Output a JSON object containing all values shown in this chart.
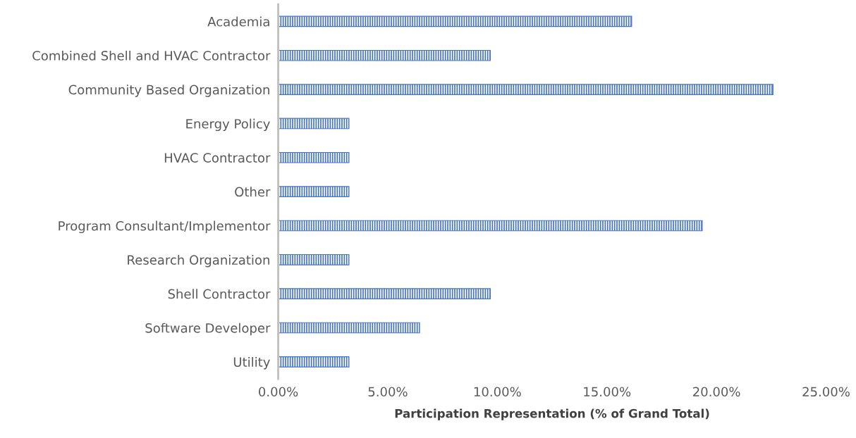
{
  "chart_data": {
    "type": "bar",
    "orientation": "horizontal",
    "xlabel": "Participation Representation (% of Grand Total)",
    "categories": [
      "Academia",
      "Combined Shell and HVAC Contractor",
      "Community Based Organization",
      "Energy Policy",
      "HVAC Contractor",
      "Other",
      "Program Consultant/Implementor",
      "Research Organization",
      "Shell Contractor",
      "Software Developer",
      "Utility"
    ],
    "values": [
      16.13,
      9.68,
      22.58,
      3.23,
      3.23,
      3.23,
      19.35,
      3.23,
      9.68,
      6.45,
      3.23
    ],
    "color": "#4472c4",
    "xlim": [
      0,
      25
    ],
    "xticks": [
      {
        "value": 0,
        "label": "0.00%"
      },
      {
        "value": 5,
        "label": "5.00%"
      },
      {
        "value": 10,
        "label": "10.00%"
      },
      {
        "value": 15,
        "label": "15.00%"
      },
      {
        "value": 20,
        "label": "20.00%"
      },
      {
        "value": 25,
        "label": "25.00%"
      }
    ],
    "grid": false,
    "legend": false
  }
}
